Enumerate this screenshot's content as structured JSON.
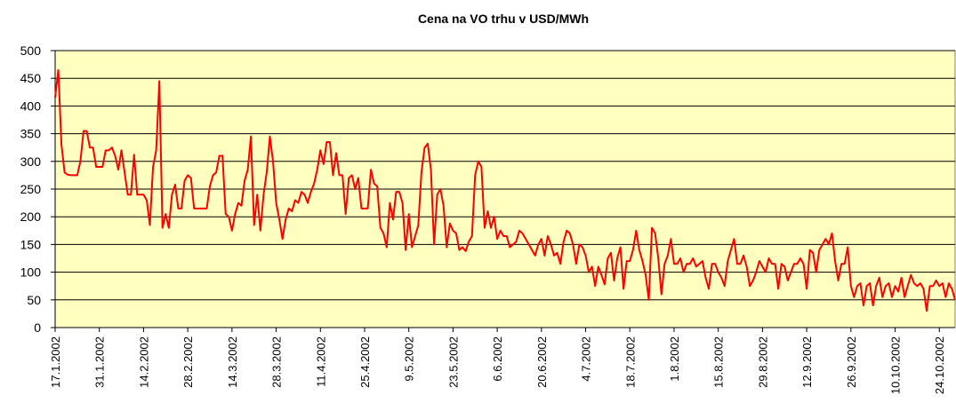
{
  "chart_data": {
    "type": "line",
    "title": "Cena na VO trhu v USD/MWh",
    "categories": [
      "17.1.2002",
      null,
      null,
      null,
      null,
      null,
      null,
      null,
      null,
      null,
      null,
      null,
      null,
      null,
      "31.1.2002",
      null,
      null,
      null,
      null,
      null,
      null,
      null,
      null,
      null,
      null,
      null,
      null,
      null,
      "14.2.2002",
      null,
      null,
      null,
      null,
      null,
      null,
      null,
      null,
      null,
      null,
      null,
      null,
      null,
      "28.2.2002",
      null,
      null,
      null,
      null,
      null,
      null,
      null,
      null,
      null,
      null,
      null,
      null,
      null,
      "14.3.2002",
      null,
      null,
      null,
      null,
      null,
      null,
      null,
      null,
      null,
      null,
      null,
      null,
      null,
      "28.3.2002",
      null,
      null,
      null,
      null,
      null,
      null,
      null,
      null,
      null,
      null,
      null,
      null,
      null,
      "11.4.2002",
      null,
      null,
      null,
      null,
      null,
      null,
      null,
      null,
      null,
      null,
      null,
      null,
      null,
      "25.4.2002",
      null,
      null,
      null,
      null,
      null,
      null,
      null,
      null,
      null,
      null,
      null,
      null,
      null,
      "9.5.2002",
      null,
      null,
      null,
      null,
      null,
      null,
      null,
      null,
      null,
      null,
      null,
      null,
      null,
      "23.5.2002",
      null,
      null,
      null,
      null,
      null,
      null,
      null,
      null,
      null,
      null,
      null,
      null,
      null,
      "6.6.2002",
      null,
      null,
      null,
      null,
      null,
      null,
      null,
      null,
      null,
      null,
      null,
      null,
      null,
      "20.6.2002",
      null,
      null,
      null,
      null,
      null,
      null,
      null,
      null,
      null,
      null,
      null,
      null,
      null,
      "4.7.2002",
      null,
      null,
      null,
      null,
      null,
      null,
      null,
      null,
      null,
      null,
      null,
      null,
      null,
      "18.7.2002",
      null,
      null,
      null,
      null,
      null,
      null,
      null,
      null,
      null,
      null,
      null,
      null,
      null,
      "1.8.2002",
      null,
      null,
      null,
      null,
      null,
      null,
      null,
      null,
      null,
      null,
      null,
      null,
      null,
      "15.8.2002",
      null,
      null,
      null,
      null,
      null,
      null,
      null,
      null,
      null,
      null,
      null,
      null,
      null,
      "29.8.2002",
      null,
      null,
      null,
      null,
      null,
      null,
      null,
      null,
      null,
      null,
      null,
      null,
      null,
      "12.9.2002",
      null,
      null,
      null,
      null,
      null,
      null,
      null,
      null,
      null,
      null,
      null,
      null,
      null,
      "26.9.2002",
      null,
      null,
      null,
      null,
      null,
      null,
      null,
      null,
      null,
      null,
      null,
      null,
      null,
      "10.10.2002",
      null,
      null,
      null,
      null,
      null,
      null,
      null,
      null,
      null,
      null,
      null,
      null,
      null,
      "24.10.2002",
      null,
      null,
      null,
      null,
      null
    ],
    "values": [
      415,
      465,
      330,
      280,
      276,
      275,
      275,
      275,
      300,
      355,
      355,
      325,
      325,
      290,
      290,
      290,
      320,
      320,
      325,
      310,
      285,
      320,
      280,
      240,
      240,
      312,
      240,
      240,
      240,
      230,
      185,
      290,
      320,
      445,
      180,
      205,
      180,
      240,
      258,
      215,
      215,
      265,
      275,
      270,
      215,
      215,
      215,
      215,
      215,
      255,
      275,
      280,
      310,
      310,
      205,
      200,
      175,
      205,
      225,
      220,
      265,
      285,
      345,
      185,
      240,
      175,
      240,
      280,
      345,
      300,
      225,
      195,
      160,
      195,
      215,
      210,
      230,
      225,
      245,
      240,
      225,
      245,
      260,
      285,
      320,
      295,
      335,
      335,
      275,
      315,
      275,
      275,
      205,
      270,
      275,
      250,
      270,
      215,
      215,
      215,
      285,
      260,
      255,
      180,
      170,
      145,
      225,
      195,
      245,
      245,
      225,
      140,
      205,
      145,
      165,
      185,
      280,
      325,
      332,
      285,
      150,
      240,
      250,
      220,
      145,
      188,
      175,
      170,
      140,
      145,
      138,
      155,
      165,
      275,
      300,
      290,
      180,
      210,
      180,
      200,
      160,
      175,
      165,
      165,
      145,
      150,
      155,
      175,
      170,
      160,
      150,
      140,
      130,
      150,
      160,
      130,
      165,
      150,
      130,
      135,
      115,
      155,
      175,
      170,
      150,
      115,
      150,
      145,
      130,
      100,
      110,
      75,
      110,
      95,
      78,
      125,
      135,
      85,
      125,
      145,
      70,
      120,
      120,
      140,
      175,
      140,
      120,
      95,
      50,
      180,
      170,
      125,
      60,
      115,
      130,
      160,
      115,
      115,
      125,
      100,
      115,
      115,
      125,
      110,
      115,
      120,
      90,
      70,
      115,
      115,
      100,
      90,
      75,
      120,
      140,
      160,
      115,
      115,
      130,
      110,
      75,
      85,
      100,
      120,
      110,
      100,
      125,
      115,
      115,
      70,
      115,
      110,
      85,
      100,
      115,
      115,
      125,
      115,
      70,
      140,
      135,
      100,
      140,
      150,
      160,
      150,
      170,
      120,
      85,
      115,
      115,
      145,
      75,
      55,
      75,
      80,
      40,
      75,
      80,
      40,
      75,
      90,
      55,
      75,
      80,
      55,
      75,
      65,
      90,
      55,
      75,
      95,
      80,
      75,
      80,
      70,
      30,
      75,
      75,
      85,
      75,
      80,
      55,
      80,
      70,
      50
    ],
    "color": "#ff0000",
    "plot_background": "#ffffc0",
    "ylim": [
      0,
      500
    ],
    "yticks": [
      0,
      50,
      100,
      150,
      200,
      250,
      300,
      350,
      400,
      450,
      500
    ],
    "grid": true
  }
}
